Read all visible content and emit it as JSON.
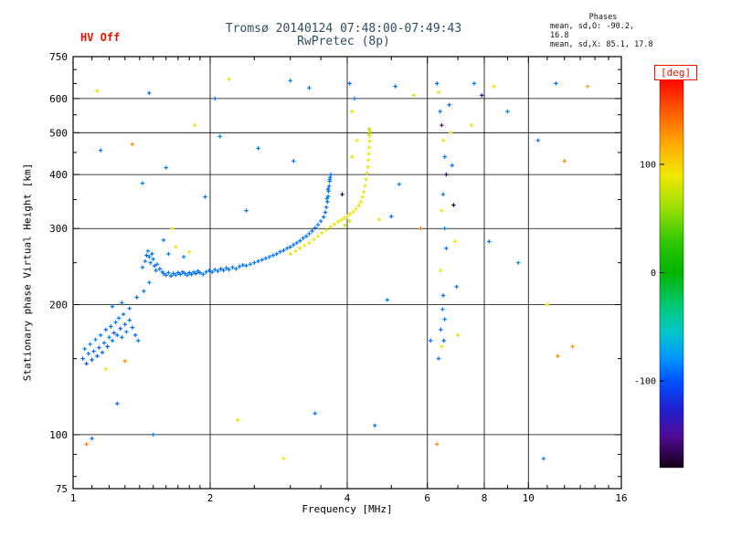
{
  "header": {
    "hv_status": "HV Off",
    "title": "Tromsø 20140124 07:48:00-07:49:43",
    "subtitle": "RwPretec (8p)",
    "phases_label": "Phases",
    "phases_o": "mean, sd,O: -90.2, 16.8",
    "phases_x": "mean, sd,X:  85.1, 17.8"
  },
  "colors": {
    "accent_red": "#ee1100",
    "title_color": "#2f4f5f",
    "axis_color": "#000000",
    "background": "#ffffff"
  },
  "chart_data": {
    "type": "scatter",
    "title": "Tromsø 20140124 07:48:00-07:49:43 — RwPretec (8p) ionogram",
    "xlabel": "Frequency [MHz]",
    "ylabel": "Stationary phase Virtual Height [km]",
    "x_scale": "log",
    "y_scale": "log",
    "xlim": [
      1,
      16
    ],
    "ylim": [
      75,
      750
    ],
    "x_ticks": [
      1,
      2,
      4,
      6,
      8,
      10,
      16
    ],
    "y_ticks": [
      75,
      100,
      200,
      300,
      400,
      500,
      600,
      750
    ],
    "minor_x_ticks": [
      1.1,
      1.2,
      1.3,
      1.4,
      1.5,
      1.6,
      1.7,
      1.8,
      1.9,
      2.5,
      3,
      3.5,
      5,
      7,
      9,
      11,
      12,
      13,
      14,
      15
    ],
    "minor_y_ticks": [
      80,
      90,
      150,
      250,
      350,
      450,
      550,
      650,
      700
    ],
    "grid_x": [
      2,
      4,
      6,
      8,
      10
    ],
    "grid_y": [
      100,
      200,
      300,
      400,
      500,
      600
    ],
    "grid": true,
    "legend_position": "right-colorbar",
    "marker": "plus",
    "colorbar": {
      "label": "[deg]",
      "range": [
        -180,
        180
      ],
      "ticks": [
        100,
        0,
        -100
      ],
      "stops": [
        [
          0.0,
          "#ff0000"
        ],
        [
          0.08,
          "#ff5500"
        ],
        [
          0.17,
          "#ffaa00"
        ],
        [
          0.25,
          "#f0e800"
        ],
        [
          0.33,
          "#a0e000"
        ],
        [
          0.42,
          "#30c800"
        ],
        [
          0.5,
          "#00b400"
        ],
        [
          0.58,
          "#00c86e"
        ],
        [
          0.65,
          "#00c8c8"
        ],
        [
          0.72,
          "#0096ff"
        ],
        [
          0.78,
          "#0050ff"
        ],
        [
          0.85,
          "#2020d0"
        ],
        [
          0.92,
          "#500a96"
        ],
        [
          1.0,
          "#140014"
        ]
      ]
    },
    "points_format": [
      "freq_mhz",
      "virtual_height_km",
      "phase_deg"
    ],
    "points": [
      [
        1.05,
        150,
        -95
      ],
      [
        1.06,
        158,
        -88
      ],
      [
        1.07,
        146,
        -102
      ],
      [
        1.08,
        154,
        -91
      ],
      [
        1.09,
        162,
        -85
      ],
      [
        1.1,
        149,
        -98
      ],
      [
        1.11,
        156,
        -90
      ],
      [
        1.12,
        166,
        -84
      ],
      [
        1.13,
        152,
        -100
      ],
      [
        1.14,
        159,
        -93
      ],
      [
        1.15,
        170,
        -87
      ],
      [
        1.16,
        155,
        -96
      ],
      [
        1.17,
        163,
        -89
      ],
      [
        1.18,
        175,
        -92
      ],
      [
        1.19,
        160,
        -99
      ],
      [
        1.2,
        168,
        -86
      ],
      [
        1.21,
        178,
        -94
      ],
      [
        1.22,
        165,
        -90
      ],
      [
        1.23,
        172,
        -97
      ],
      [
        1.24,
        182,
        -88
      ],
      [
        1.25,
        170,
        -93
      ],
      [
        1.26,
        186,
        -85
      ],
      [
        1.27,
        176,
        -101
      ],
      [
        1.28,
        168,
        -91
      ],
      [
        1.29,
        190,
        -89
      ],
      [
        1.3,
        180,
        -95
      ],
      [
        1.31,
        173,
        -87
      ],
      [
        1.33,
        184,
        -92
      ],
      [
        1.35,
        177,
        -90
      ],
      [
        1.37,
        170,
        -96
      ],
      [
        1.39,
        165,
        -88
      ],
      [
        1.18,
        142,
        88
      ],
      [
        1.3,
        148,
        130
      ],
      [
        1.22,
        198,
        -90
      ],
      [
        1.28,
        202,
        -86
      ],
      [
        1.33,
        196,
        -93
      ],
      [
        1.43,
        215,
        -90
      ],
      [
        1.47,
        225,
        -86
      ],
      [
        1.38,
        208,
        -93
      ],
      [
        1.42,
        244,
        -91
      ],
      [
        1.44,
        252,
        -88
      ],
      [
        1.45,
        260,
        -94
      ],
      [
        1.46,
        266,
        -86
      ],
      [
        1.47,
        258,
        -92
      ],
      [
        1.48,
        250,
        -89
      ],
      [
        1.49,
        262,
        -95
      ],
      [
        1.5,
        255,
        -87
      ],
      [
        1.51,
        246,
        -93
      ],
      [
        1.52,
        240,
        -90
      ],
      [
        1.53,
        248,
        -85
      ],
      [
        1.55,
        242,
        -92
      ],
      [
        1.57,
        238,
        -89
      ],
      [
        1.62,
        262,
        -88
      ],
      [
        1.68,
        272,
        90
      ],
      [
        1.58,
        282,
        -91
      ],
      [
        1.75,
        258,
        -87
      ],
      [
        1.8,
        265,
        85
      ],
      [
        1.58,
        236,
        -90
      ],
      [
        1.6,
        234,
        -93
      ],
      [
        1.62,
        237,
        -88
      ],
      [
        1.64,
        233,
        -95
      ],
      [
        1.66,
        236,
        -91
      ],
      [
        1.68,
        234,
        -87
      ],
      [
        1.7,
        237,
        -92
      ],
      [
        1.72,
        235,
        -89
      ],
      [
        1.74,
        238,
        -94
      ],
      [
        1.76,
        236,
        -90
      ],
      [
        1.78,
        234,
        -86
      ],
      [
        1.8,
        237,
        -93
      ],
      [
        1.82,
        235,
        -91
      ],
      [
        1.84,
        238,
        -88
      ],
      [
        1.86,
        236,
        -95
      ],
      [
        1.88,
        239,
        -90
      ],
      [
        1.9,
        237,
        -92
      ],
      [
        1.93,
        235,
        -89
      ],
      [
        1.96,
        238,
        -91
      ],
      [
        1.99,
        240,
        -87
      ],
      [
        2.02,
        238,
        -93
      ],
      [
        2.05,
        241,
        -90
      ],
      [
        2.08,
        239,
        -88
      ],
      [
        2.11,
        242,
        -94
      ],
      [
        2.14,
        240,
        -91
      ],
      [
        2.17,
        243,
        -89
      ],
      [
        2.2,
        241,
        -92
      ],
      [
        2.24,
        244,
        -90
      ],
      [
        2.28,
        242,
        -87
      ],
      [
        2.32,
        245,
        -93
      ],
      [
        2.36,
        247,
        -90
      ],
      [
        2.4,
        246,
        -91
      ],
      [
        2.45,
        248,
        -88
      ],
      [
        2.5,
        250,
        -92
      ],
      [
        2.55,
        252,
        -90
      ],
      [
        2.6,
        254,
        -89
      ],
      [
        2.65,
        256,
        -91
      ],
      [
        2.7,
        258,
        -90
      ],
      [
        2.75,
        260,
        -88
      ],
      [
        2.8,
        262,
        -92
      ],
      [
        2.85,
        265,
        -90
      ],
      [
        2.9,
        267,
        -93
      ],
      [
        2.95,
        270,
        -89
      ],
      [
        3.0,
        272,
        -91
      ],
      [
        3.05,
        275,
        -90
      ],
      [
        3.1,
        278,
        -88
      ],
      [
        3.15,
        281,
        -92
      ],
      [
        3.2,
        285,
        -90
      ],
      [
        3.25,
        288,
        -91
      ],
      [
        3.3,
        292,
        -89
      ],
      [
        3.35,
        296,
        -93
      ],
      [
        3.4,
        301,
        -90
      ],
      [
        3.45,
        306,
        -88
      ],
      [
        3.5,
        312,
        -92
      ],
      [
        3.55,
        319,
        -90
      ],
      [
        3.58,
        327,
        -91
      ],
      [
        3.6,
        336,
        -89
      ],
      [
        3.62,
        346,
        -92
      ],
      [
        3.63,
        356,
        -90
      ],
      [
        3.64,
        366,
        -88
      ],
      [
        3.65,
        376,
        -93
      ],
      [
        3.66,
        386,
        -90
      ],
      [
        3.67,
        394,
        -91
      ],
      [
        3.68,
        400,
        -89
      ],
      [
        3.61,
        352,
        -87
      ],
      [
        3.63,
        370,
        -94
      ],
      [
        3.66,
        390,
        -86
      ],
      [
        3.9,
        360,
        -170
      ],
      [
        3.0,
        262,
        82
      ],
      [
        3.08,
        266,
        88
      ],
      [
        3.15,
        270,
        85
      ],
      [
        3.22,
        274,
        90
      ],
      [
        3.3,
        278,
        84
      ],
      [
        3.38,
        283,
        87
      ],
      [
        3.45,
        288,
        92
      ],
      [
        3.52,
        293,
        86
      ],
      [
        3.6,
        298,
        89
      ],
      [
        3.68,
        303,
        83
      ],
      [
        3.75,
        307,
        88
      ],
      [
        3.82,
        311,
        85
      ],
      [
        3.88,
        314,
        91
      ],
      [
        3.94,
        317,
        86
      ],
      [
        4.0,
        320,
        89
      ],
      [
        4.06,
        324,
        84
      ],
      [
        4.12,
        328,
        90
      ],
      [
        4.18,
        333,
        87
      ],
      [
        4.24,
        339,
        85
      ],
      [
        4.28,
        346,
        92
      ],
      [
        4.32,
        355,
        88
      ],
      [
        4.35,
        365,
        86
      ],
      [
        4.38,
        377,
        90
      ],
      [
        4.4,
        390,
        84
      ],
      [
        4.42,
        403,
        89
      ],
      [
        4.44,
        417,
        87
      ],
      [
        4.45,
        432,
        91
      ],
      [
        4.46,
        447,
        85
      ],
      [
        4.47,
        462,
        88
      ],
      [
        4.48,
        478,
        86
      ],
      [
        4.48,
        492,
        90
      ],
      [
        4.49,
        505,
        83
      ],
      [
        4.47,
        510,
        65
      ],
      [
        4.46,
        498,
        70
      ],
      [
        3.95,
        305,
        75
      ],
      [
        4.05,
        312,
        78
      ],
      [
        6.3,
        650,
        -92
      ],
      [
        6.35,
        620,
        85
      ],
      [
        6.4,
        560,
        -88
      ],
      [
        6.45,
        520,
        -150
      ],
      [
        6.5,
        480,
        88
      ],
      [
        6.55,
        440,
        -90
      ],
      [
        6.6,
        400,
        -165
      ],
      [
        6.5,
        360,
        -89
      ],
      [
        6.45,
        330,
        90
      ],
      [
        6.55,
        300,
        -87
      ],
      [
        6.6,
        270,
        -91
      ],
      [
        6.4,
        240,
        86
      ],
      [
        6.5,
        210,
        -93
      ],
      [
        6.55,
        185,
        -88
      ],
      [
        6.45,
        160,
        89
      ],
      [
        6.35,
        150,
        -90
      ],
      [
        6.7,
        580,
        -95
      ],
      [
        6.75,
        500,
        84
      ],
      [
        6.8,
        420,
        -91
      ],
      [
        6.85,
        340,
        -170
      ],
      [
        6.9,
        280,
        87
      ],
      [
        6.95,
        220,
        -89
      ],
      [
        7.0,
        170,
        85
      ],
      [
        6.42,
        175,
        -92
      ],
      [
        6.48,
        195,
        -85
      ],
      [
        6.52,
        165,
        -95
      ],
      [
        1.13,
        625,
        95
      ],
      [
        1.47,
        618,
        -90
      ],
      [
        2.2,
        665,
        85
      ],
      [
        3.0,
        660,
        -90
      ],
      [
        2.05,
        600,
        -88
      ],
      [
        3.3,
        635,
        -92
      ],
      [
        1.85,
        520,
        88
      ],
      [
        2.1,
        490,
        -85
      ],
      [
        1.35,
        470,
        130
      ],
      [
        1.15,
        455,
        -90
      ],
      [
        1.6,
        415,
        -87
      ],
      [
        2.55,
        460,
        -89
      ],
      [
        3.05,
        430,
        -91
      ],
      [
        5.1,
        640,
        -90
      ],
      [
        5.6,
        610,
        85
      ],
      [
        7.6,
        650,
        -88
      ],
      [
        7.9,
        610,
        -150
      ],
      [
        8.4,
        640,
        88
      ],
      [
        11.5,
        650,
        -90
      ],
      [
        13.5,
        640,
        120
      ],
      [
        9.0,
        560,
        -85
      ],
      [
        7.5,
        520,
        86
      ],
      [
        10.5,
        480,
        -92
      ],
      [
        12.0,
        430,
        135
      ],
      [
        5.2,
        380,
        -88
      ],
      [
        5.8,
        300,
        140
      ],
      [
        8.2,
        280,
        -90
      ],
      [
        9.5,
        250,
        -86
      ],
      [
        11.0,
        200,
        88
      ],
      [
        6.1,
        165,
        -91
      ],
      [
        12.5,
        160,
        125
      ],
      [
        11.6,
        152,
        130
      ],
      [
        4.1,
        560,
        85
      ],
      [
        4.15,
        600,
        -88
      ],
      [
        4.05,
        650,
        -92
      ],
      [
        4.2,
        480,
        90
      ],
      [
        4.1,
        440,
        86
      ],
      [
        4.9,
        205,
        -88
      ],
      [
        4.7,
        315,
        88
      ],
      [
        5.0,
        320,
        -90
      ],
      [
        1.07,
        95,
        135
      ],
      [
        1.5,
        100,
        -88
      ],
      [
        2.3,
        108,
        85
      ],
      [
        3.4,
        112,
        -90
      ],
      [
        6.3,
        95,
        130
      ],
      [
        10.8,
        88,
        -85
      ],
      [
        2.9,
        88,
        88
      ],
      [
        1.25,
        118,
        -92
      ],
      [
        4.6,
        105,
        -89
      ],
      [
        1.1,
        98,
        -90
      ],
      [
        1.65,
        300,
        85
      ],
      [
        2.4,
        330,
        -88
      ],
      [
        1.95,
        355,
        -90
      ],
      [
        1.42,
        382,
        -88
      ]
    ]
  }
}
